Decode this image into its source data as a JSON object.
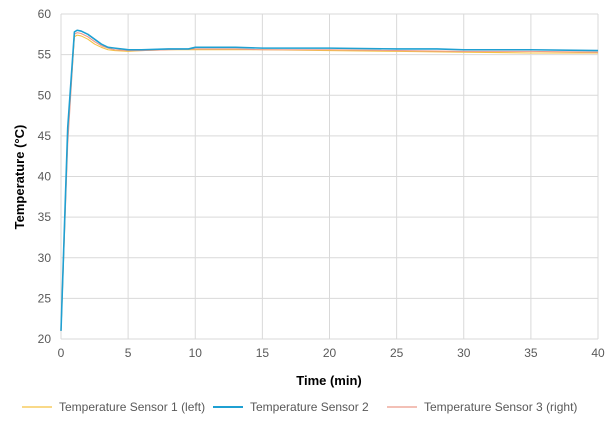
{
  "chart_data": {
    "type": "line",
    "title": "",
    "xlabel": "Time (min)",
    "ylabel": "Temperature (°C)",
    "xlim": [
      0,
      40
    ],
    "ylim": [
      20,
      60
    ],
    "xticks": [
      0,
      5,
      10,
      15,
      20,
      25,
      30,
      35,
      40
    ],
    "yticks": [
      20,
      25,
      30,
      35,
      40,
      45,
      50,
      55,
      60
    ],
    "grid": true,
    "legend_position": "bottom",
    "series": [
      {
        "name": "Temperature Sensor 1 (left)",
        "color": "#f5c242",
        "x": [
          0,
          0.5,
          1.0,
          1.2,
          1.5,
          2.0,
          2.5,
          3.0,
          3.5,
          4.0,
          5.0,
          6.0,
          8.0,
          10.0,
          13.0,
          15.0,
          20.0,
          25.0,
          30.0,
          35.0,
          40.0
        ],
        "y": [
          21.0,
          45.0,
          57.2,
          57.4,
          57.3,
          56.9,
          56.3,
          55.9,
          55.6,
          55.5,
          55.4,
          55.5,
          55.6,
          55.6,
          55.6,
          55.6,
          55.5,
          55.4,
          55.3,
          55.2,
          55.2
        ]
      },
      {
        "name": "Temperature Sensor 2",
        "color": "#1fa0d2",
        "x": [
          0,
          0.5,
          1.0,
          1.2,
          1.5,
          2.0,
          2.5,
          3.0,
          3.5,
          4.0,
          5.0,
          6.0,
          8.0,
          9.5,
          10.0,
          13.0,
          15.0,
          20.0,
          25.0,
          28.0,
          30.0,
          35.0,
          40.0
        ],
        "y": [
          21.0,
          46.0,
          57.8,
          58.0,
          57.9,
          57.5,
          56.9,
          56.3,
          55.9,
          55.8,
          55.6,
          55.6,
          55.7,
          55.7,
          55.9,
          55.9,
          55.8,
          55.8,
          55.7,
          55.7,
          55.6,
          55.6,
          55.5
        ]
      },
      {
        "name": "Temperature Sensor 3 (right)",
        "color": "#ec9a8a",
        "x": [
          0,
          0.5,
          1.0,
          1.2,
          1.5,
          2.0,
          2.5,
          3.0,
          3.5,
          4.0,
          5.0,
          6.0,
          8.0,
          10.0,
          13.0,
          15.0,
          20.0,
          25.0,
          30.0,
          35.0,
          40.0
        ],
        "y": [
          21.0,
          44.0,
          57.5,
          57.7,
          57.6,
          57.2,
          56.6,
          56.1,
          55.8,
          55.6,
          55.5,
          55.5,
          55.6,
          55.7,
          55.7,
          55.6,
          55.6,
          55.5,
          55.4,
          55.4,
          55.3
        ]
      }
    ]
  }
}
